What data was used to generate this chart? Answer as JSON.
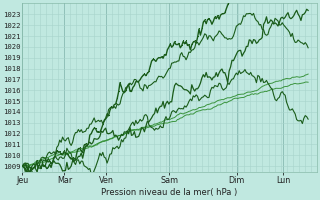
{
  "xlabel": "Pression niveau de la mer( hPa )",
  "bg_color": "#c0e8e0",
  "grid_minor_color": "#a8d4cc",
  "grid_major_color": "#90c0b8",
  "line_dark": "#1a5c1a",
  "line_medium": "#2d8c2d",
  "ylim": [
    1008.5,
    1024.0
  ],
  "yticks": [
    1009,
    1010,
    1011,
    1012,
    1013,
    1014,
    1015,
    1016,
    1017,
    1018,
    1019,
    1020,
    1021,
    1022,
    1023
  ],
  "days": [
    "Jeu",
    "Mar",
    "Ven",
    "Sam",
    "Dim",
    "Lun"
  ],
  "xlim": [
    0,
    7.0
  ],
  "n_points": 200
}
